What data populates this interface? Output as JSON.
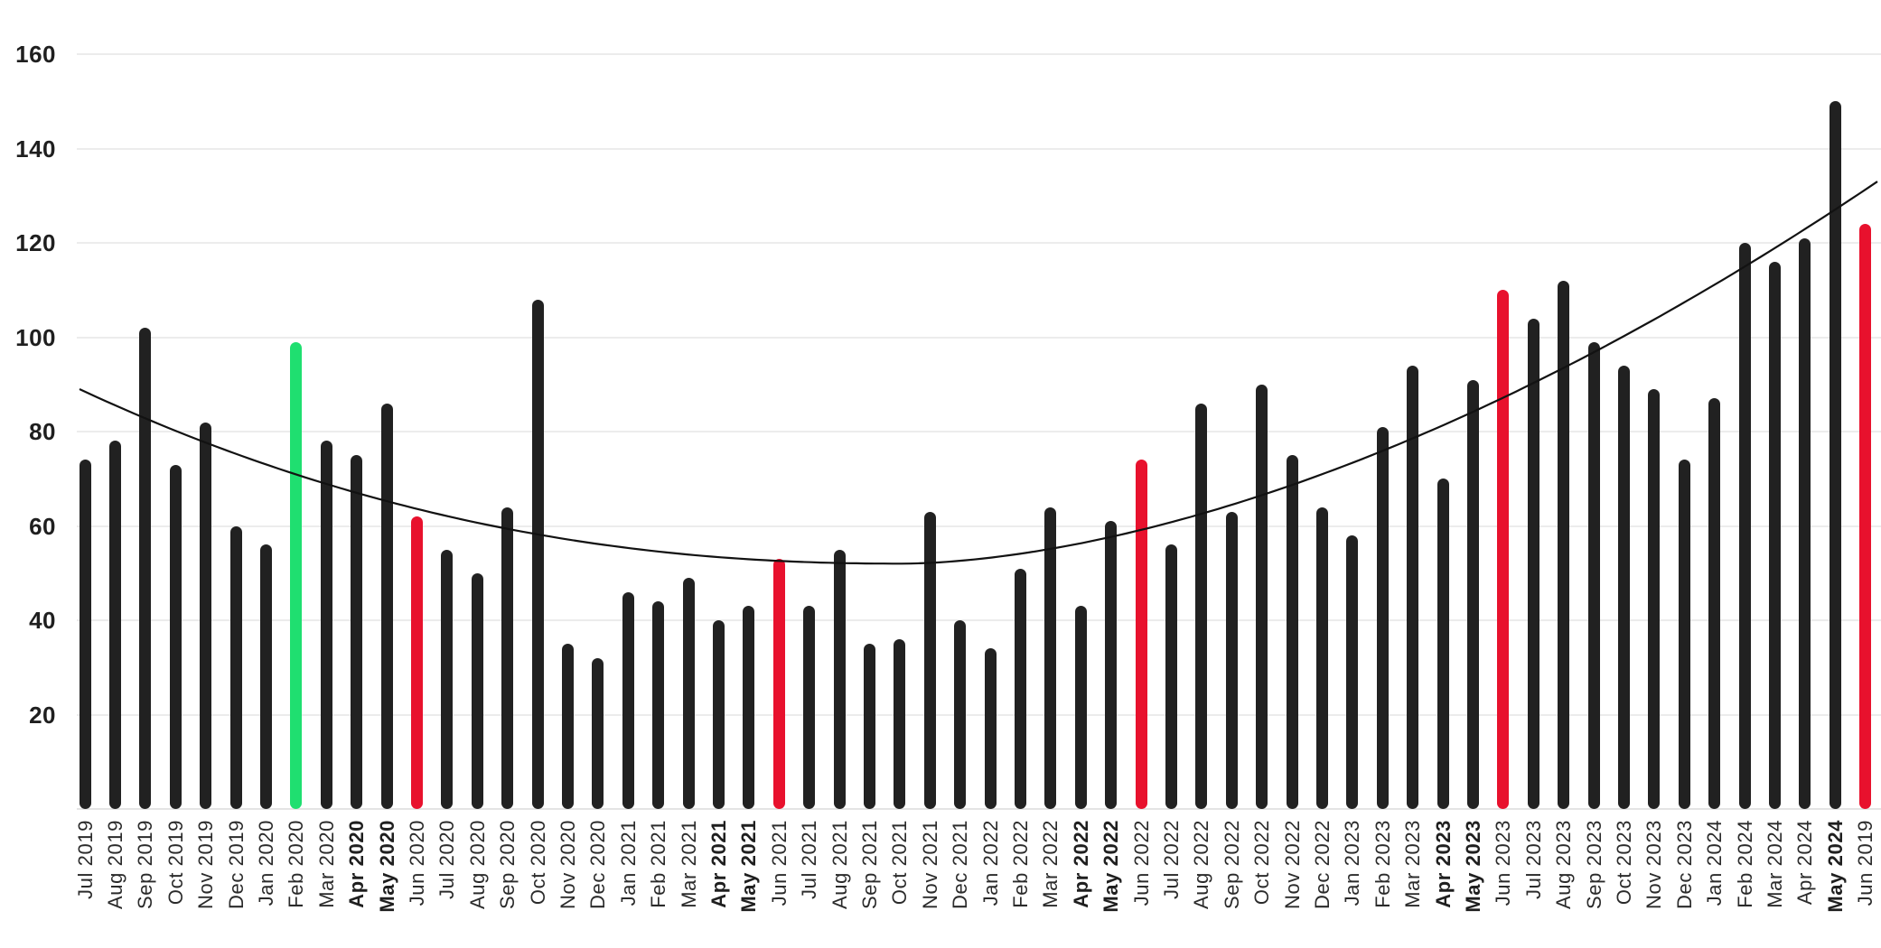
{
  "chart_data": {
    "type": "bar",
    "title": "",
    "categories": [
      "Jul 2019",
      "Aug 2019",
      "Sep 2019",
      "Oct 2019",
      "Nov 2019",
      "Dec 2019",
      "Jan 2020",
      "Feb 2020",
      "Mar 2020",
      "Apr 2020",
      "May 2020",
      "Jun 2020",
      "Jul 2020",
      "Aug 2020",
      "Sep 2020",
      "Oct 2020",
      "Nov 2020",
      "Dec 2020",
      "Jan 2021",
      "Feb 2021",
      "Mar 2021",
      "Apr 2021",
      "May 2021",
      "Jun 2021",
      "Jul 2021",
      "Aug 2021",
      "Sep 2021",
      "Oct 2021",
      "Nov 2021",
      "Dec 2021",
      "Jan 2022",
      "Feb 2022",
      "Mar 2022",
      "Apr 2022",
      "May 2022",
      "Jun 2022",
      "Jul 2022",
      "Aug 2022",
      "Sep 2022",
      "Oct 2022",
      "Nov 2022",
      "Dec 2022",
      "Jan 2023",
      "Feb 2023",
      "Mar 2023",
      "Apr 2023",
      "May 2023",
      "Jun 2023",
      "Jul 2023",
      "Aug 2023",
      "Sep 2023",
      "Oct 2023",
      "Nov 2023",
      "Dec 2023",
      "Jan 2024",
      "Feb 2024",
      "Mar 2024",
      "Apr 2024",
      "May 2024",
      "Jun 2019"
    ],
    "values": [
      74,
      78,
      102,
      73,
      82,
      60,
      56,
      99,
      78,
      75,
      86,
      62,
      55,
      50,
      64,
      108,
      35,
      32,
      46,
      44,
      49,
      40,
      43,
      53,
      43,
      55,
      35,
      36,
      63,
      40,
      34,
      51,
      64,
      43,
      61,
      74,
      56,
      86,
      63,
      90,
      75,
      64,
      58,
      81,
      94,
      70,
      91,
      110,
      104,
      112,
      99,
      94,
      89,
      74,
      87,
      120,
      116,
      121,
      150,
      124
    ],
    "bar_colors": [
      "black",
      "black",
      "black",
      "black",
      "black",
      "black",
      "black",
      "green",
      "black",
      "black",
      "black",
      "red",
      "black",
      "black",
      "black",
      "black",
      "black",
      "black",
      "black",
      "black",
      "black",
      "black",
      "black",
      "red",
      "black",
      "black",
      "black",
      "black",
      "black",
      "black",
      "black",
      "black",
      "black",
      "black",
      "black",
      "red",
      "black",
      "black",
      "black",
      "black",
      "black",
      "black",
      "black",
      "black",
      "black",
      "black",
      "black",
      "red",
      "black",
      "black",
      "black",
      "black",
      "black",
      "black",
      "black",
      "black",
      "black",
      "black",
      "black",
      "red"
    ],
    "bold_categories": [
      "Apr 2020",
      "May 2020",
      "Apr 2021",
      "May 2021",
      "Apr 2022",
      "May 2022",
      "Apr 2023",
      "May 2023",
      "May 2024"
    ],
    "xlabel": "",
    "ylabel": "",
    "ylim": [
      0,
      160
    ],
    "yticks": [
      20,
      40,
      60,
      80,
      100,
      120,
      140,
      160
    ],
    "grid": "horizontal",
    "legend": "none",
    "trendline": {
      "type": "polynomial-fit",
      "start_value": 89,
      "min_value": 52,
      "end_value": 133
    }
  },
  "colors": {
    "background": "#ffffff",
    "bar_black": "#212121",
    "bar_red": "#E8112D",
    "bar_green": "#1FDF70",
    "gridline": "#ECECEC",
    "baseline": "#E4E4E4",
    "ytick_label": "#1F1F1F",
    "xtick_label": "#2B2B2B",
    "trend": "#121212"
  }
}
